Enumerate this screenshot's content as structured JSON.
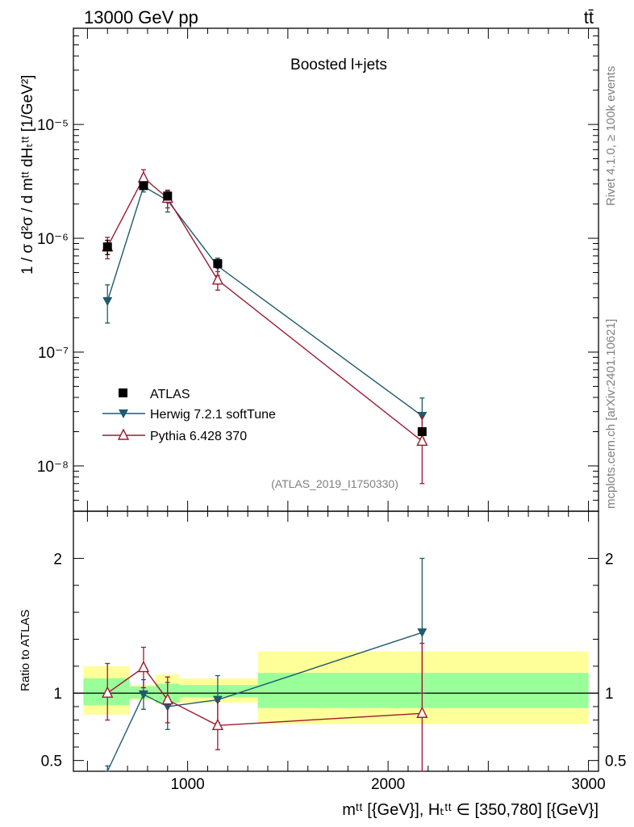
{
  "header": {
    "left": "13000 GeV pp",
    "right": "tt̄"
  },
  "side": {
    "rivet": "Rivet 4.1.0, ≥ 100k events",
    "source": "mcplots.cern.ch [arXiv:2401.10621]"
  },
  "main_label": "Boosted l+jets",
  "analysis_id": "(ATLAS_2019_I1750330)",
  "y_label_main": "1 / σ d²σ / d mᵗᵗ dHₜᵗᵗ [1/GeV²]",
  "y_label_ratio": "Ratio to ATLAS",
  "x_label": "mᵗᵗ [{GeV}], Hₜᵗᵗ ∈ [350,780] [{GeV}]",
  "legend": [
    {
      "label": "ATLAS",
      "color": "#000000",
      "marker": "square"
    },
    {
      "label": "Herwig 7.2.1 softTune",
      "color": "#1f5a6e",
      "marker": "triangle-down"
    },
    {
      "label": "Pythia 6.428 370",
      "color": "#9b1b30",
      "marker": "triangle-up-open"
    }
  ],
  "chart_data": [
    {
      "type": "line",
      "title": "Boosted l+jets",
      "yscale": "log",
      "ylim": [
        4e-09,
        7e-05
      ],
      "xlim": [
        430,
        3050
      ],
      "y_tick_labels": [
        "10⁻⁸",
        "10⁻⁷",
        "10⁻⁶",
        "10⁻⁵"
      ],
      "y_tick_values": [
        1e-08,
        1e-07,
        1e-06,
        1e-05
      ],
      "series": [
        {
          "name": "ATLAS",
          "x": [
            600,
            780,
            900,
            1150,
            2170
          ],
          "y": [
            8.4e-07,
            2.9e-06,
            2.35e-06,
            6e-07,
            2e-08
          ],
          "err_lo": [
            1.2e-07,
            2e-07,
            1.8e-07,
            5e-08,
            1.5e-09
          ],
          "err_hi": [
            1.2e-07,
            2e-07,
            1.8e-07,
            5e-08,
            1.5e-09
          ]
        },
        {
          "name": "Herwig 7.2.1 softTune",
          "x": [
            600,
            780,
            900,
            1150,
            2170
          ],
          "y": [
            2.8e-07,
            2.85e-06,
            2.15e-06,
            5.7e-07,
            2.75e-08
          ],
          "err_lo": [
            1e-07,
            3e-07,
            4.5e-07,
            1e-07,
            1e-08
          ],
          "err_hi": [
            1.1e-07,
            3e-07,
            4.5e-07,
            1e-07,
            1.2e-08
          ]
        },
        {
          "name": "Pythia 6.428 370",
          "x": [
            600,
            780,
            900,
            1150,
            2170
          ],
          "y": [
            8.4e-07,
            3.4e-06,
            2.25e-06,
            4.3e-07,
            1.65e-08
          ],
          "err_lo": [
            1.8e-07,
            5e-07,
            4e-07,
            8e-08,
            9.5e-09
          ],
          "err_hi": [
            1.8e-07,
            6e-07,
            4e-07,
            8e-08,
            1.1e-08
          ]
        }
      ]
    },
    {
      "type": "line",
      "title": "Ratio to ATLAS",
      "ylabel": "Ratio to ATLAS",
      "xlabel": "m tt [{GeV}], HT tt in [350,780] [{GeV}]",
      "ylim": [
        0.42,
        2.35
      ],
      "xlim": [
        430,
        3050
      ],
      "x_ticks": [
        1000,
        2000,
        3000
      ],
      "x_tick_labels": [
        "1000",
        "2000",
        "3000"
      ],
      "y_ticks": [
        0.5,
        1,
        2
      ],
      "y_tick_labels": [
        "0.5",
        "1",
        "2"
      ],
      "bands": [
        {
          "x0": 480,
          "x1": 710,
          "inner": [
            0.91,
            1.11
          ],
          "outer": [
            0.84,
            1.2
          ]
        },
        {
          "x0": 710,
          "x1": 840,
          "inner": [
            0.96,
            1.05
          ],
          "outer": [
            0.95,
            1.06
          ]
        },
        {
          "x0": 840,
          "x1": 960,
          "inner": [
            0.93,
            1.07
          ],
          "outer": [
            0.92,
            1.14
          ]
        },
        {
          "x0": 960,
          "x1": 1350,
          "inner": [
            0.97,
            1.06
          ],
          "outer": [
            0.93,
            1.11
          ]
        },
        {
          "x0": 1350,
          "x1": 3000,
          "inner": [
            0.89,
            1.15
          ],
          "outer": [
            0.77,
            1.31
          ]
        }
      ],
      "series": [
        {
          "name": "Herwig 7.2.1 softTune",
          "x": [
            600,
            780,
            900,
            1150,
            2170
          ],
          "y": [
            0.33,
            0.99,
            0.9,
            0.95,
            1.45
          ],
          "err_lo": [
            0.12,
            0.11,
            0.17,
            0.17,
            0.45
          ],
          "err_hi": [
            0.13,
            0.11,
            0.18,
            0.18,
            0.55
          ]
        },
        {
          "name": "Pythia 6.428 370",
          "x": [
            600,
            780,
            900,
            1150,
            2170
          ],
          "y": [
            1.0,
            1.19,
            0.95,
            0.76,
            0.85
          ],
          "err_lo": [
            0.2,
            0.15,
            0.17,
            0.18,
            0.5
          ],
          "err_hi": [
            0.22,
            0.15,
            0.17,
            0.18,
            0.52
          ]
        }
      ]
    }
  ]
}
